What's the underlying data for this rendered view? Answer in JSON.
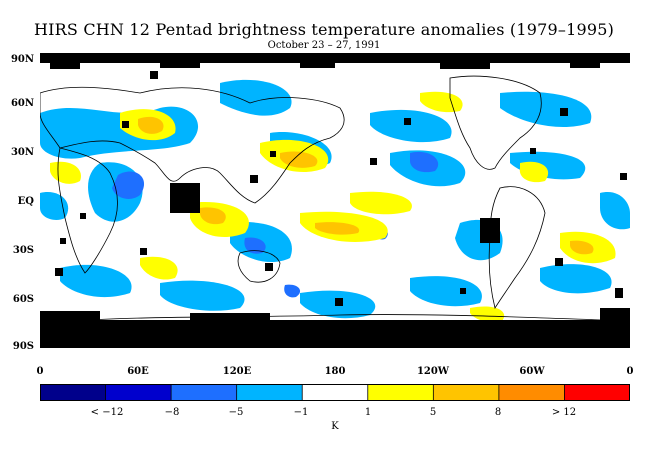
{
  "title": "HIRS CHN 12 Pentad brightness temperature anomalies (1979–1995)",
  "subtitle": "October 23 – 27, 1991",
  "lat_labels": [
    "90N",
    "60N",
    "30N",
    "EQ",
    "30S",
    "60S",
    "90S"
  ],
  "lon_labels": [
    "0",
    "60E",
    "120E",
    "180",
    "120W",
    "60W",
    "0"
  ],
  "colorbar": {
    "colors": [
      "#00008b",
      "#0000cd",
      "#1e6fff",
      "#00b4ff",
      "#ffffff",
      "#ffff00",
      "#ffc400",
      "#ff8c00",
      "#ff0000"
    ],
    "labels": [
      "< −12",
      "−8",
      "−5",
      "−1",
      "1",
      "5",
      "8",
      "> 12"
    ],
    "unit": "K"
  },
  "map_colors": {
    "land_outline": "#000000",
    "missing_data": "#000000",
    "ocean_background": "#ffffff"
  }
}
